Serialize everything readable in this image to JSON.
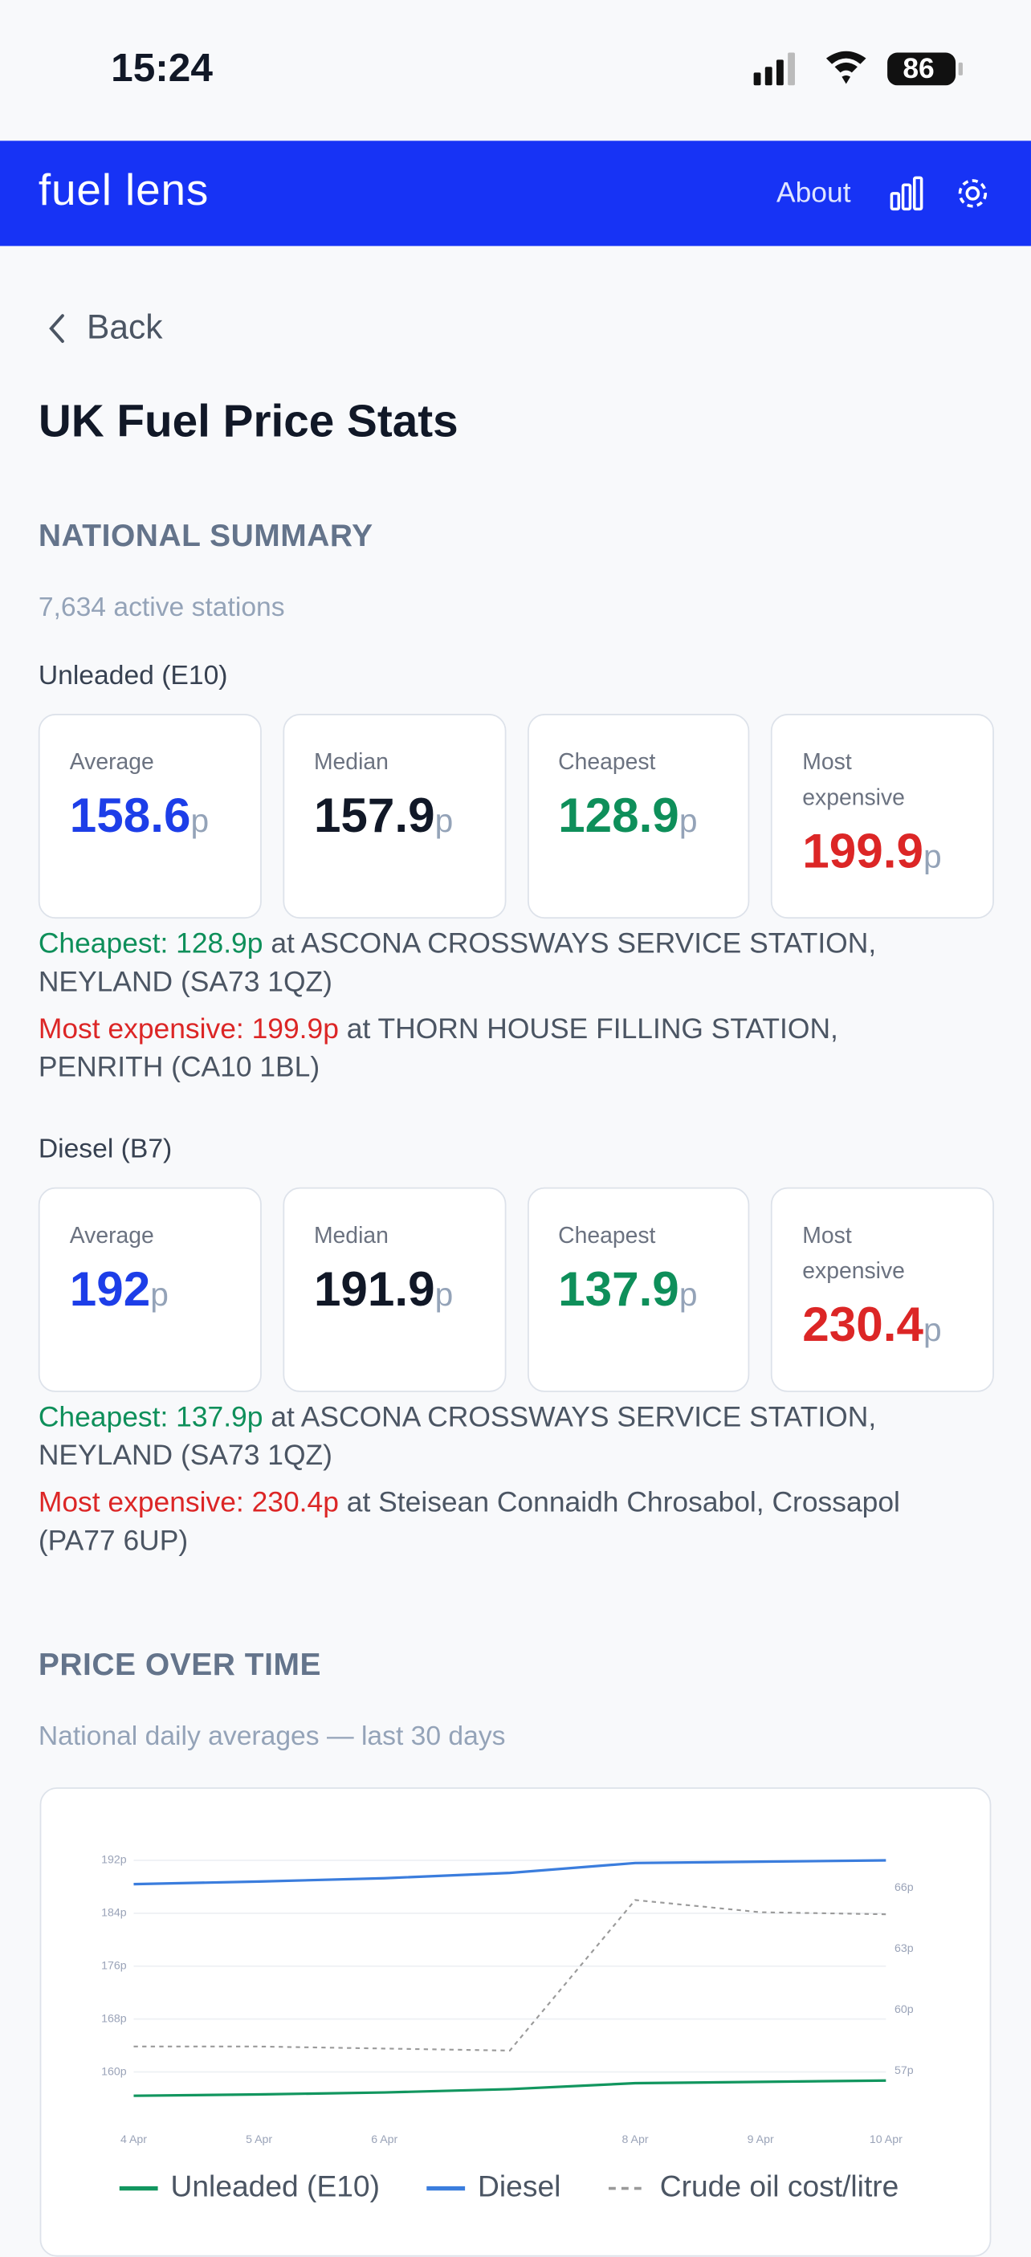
{
  "status_bar": {
    "time": "15:24",
    "battery": "86"
  },
  "header": {
    "title": "fuel lens",
    "about": "About"
  },
  "back": "Back",
  "title": "UK Fuel Price Stats",
  "national_summary": {
    "heading": "NATIONAL SUMMARY",
    "stations": "7,634 active stations",
    "fuels": [
      {
        "name": "Unleaded (E10)",
        "cards": [
          {
            "label": "Average",
            "value": 158.6,
            "unit": "p"
          },
          {
            "label": "Median",
            "value": 157.9,
            "unit": "p"
          },
          {
            "label": "Cheapest",
            "value": 128.9,
            "unit": "p"
          },
          {
            "label": "Most expensive",
            "value": 199.9,
            "unit": "p"
          }
        ],
        "cheapest": {
          "label": "Cheapest: 128.9p",
          "text": "at ASCONA CROSSWAYS SERVICE STATION, NEYLAND (SA73 1QZ)"
        },
        "most_expensive": {
          "label": "Most expensive: 199.9p",
          "text": "at THORN HOUSE FILLING STATION, PENRITH (CA10 1BL)"
        }
      },
      {
        "name": "Diesel (B7)",
        "cards": [
          {
            "label": "Average",
            "value": 192,
            "unit": "p"
          },
          {
            "label": "Median",
            "value": 191.9,
            "unit": "p"
          },
          {
            "label": "Cheapest",
            "value": 137.9,
            "unit": "p"
          },
          {
            "label": "Most expensive",
            "value": 230.4,
            "unit": "p"
          }
        ],
        "cheapest": {
          "label": "Cheapest: 137.9p",
          "text": "at ASCONA CROSSWAYS SERVICE STATION, NEYLAND (SA73 1QZ)"
        },
        "most_expensive": {
          "label": "Most expensive: 230.4p",
          "text": "at Steisean Connaidh Chrosabol, Crossapol (PA77 6UP)"
        }
      }
    ]
  },
  "price_over_time": {
    "heading": "PRICE OVER TIME",
    "subtitle": "National daily averages — last 30 days"
  },
  "chart_data": {
    "type": "line",
    "categories": [
      "4 Apr",
      "5 Apr",
      "6 Apr",
      null,
      "8 Apr",
      "9 Apr",
      "10 Apr"
    ],
    "series": [
      {
        "name": "Unleaded (E10)",
        "color": "#12965f",
        "style": "solid",
        "values": [
          156.4,
          156.6,
          156.9,
          157.4,
          158.3,
          158.5,
          158.7
        ]
      },
      {
        "name": "Diesel",
        "color": "#3b7ddd",
        "style": "solid",
        "values": [
          188.4,
          188.8,
          189.3,
          190.1,
          191.6,
          191.8,
          192.0
        ]
      },
      {
        "name": "Crude oil cost/litre",
        "color": "#9a9a9a",
        "style": "dashed",
        "axis": "y2",
        "values": [
          58.2,
          58.2,
          58.1,
          58.0,
          65.4,
          64.8,
          64.7
        ]
      }
    ],
    "ylim": [
      154,
      194
    ],
    "yticks": [
      {
        "value": 160,
        "label": "160p"
      },
      {
        "value": 168,
        "label": "168p"
      },
      {
        "value": 176,
        "label": "176p"
      },
      {
        "value": 184,
        "label": "184p"
      },
      {
        "value": 192,
        "label": "192p"
      }
    ],
    "y2lim": [
      55,
      68
    ],
    "y2ticks": [
      {
        "value": 57,
        "label": "57p"
      },
      {
        "value": 60,
        "label": "60p"
      },
      {
        "value": 63,
        "label": "63p"
      },
      {
        "value": 66,
        "label": "66p"
      }
    ],
    "grid": true
  }
}
